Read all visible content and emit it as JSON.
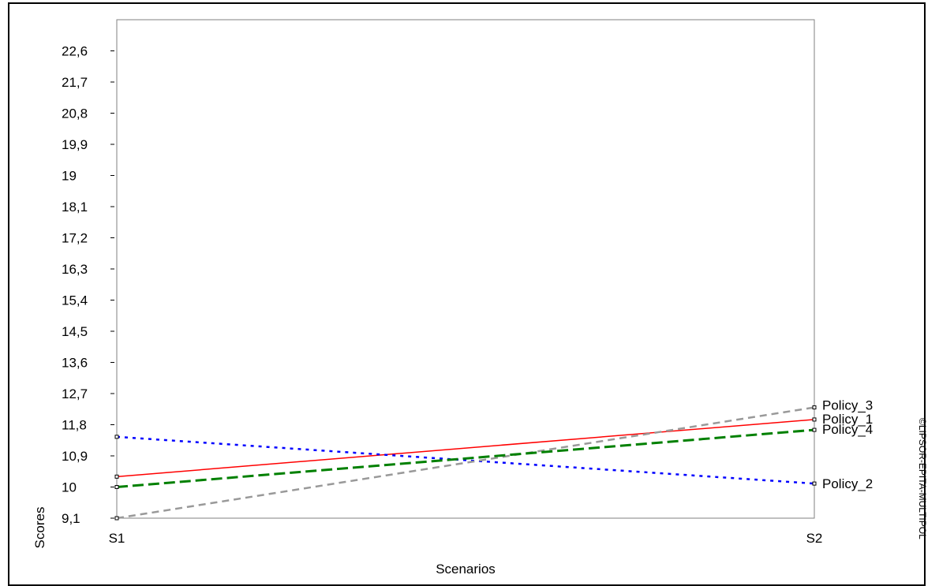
{
  "chart_data": {
    "type": "line",
    "title": "",
    "xlabel": "Scenarios",
    "ylabel": "Scores",
    "categories": [
      "S1",
      "S2"
    ],
    "yticks": [
      "9,1",
      "10",
      "10,9",
      "11,8",
      "12,7",
      "13,6",
      "14,5",
      "15,4",
      "16,3",
      "17,2",
      "18,1",
      "19",
      "19,9",
      "20,8",
      "21,7",
      "22,6"
    ],
    "ytick_values": [
      9.1,
      10.0,
      10.9,
      11.8,
      12.7,
      13.6,
      14.5,
      15.4,
      16.3,
      17.2,
      18.1,
      19.0,
      19.9,
      20.8,
      21.7,
      22.6
    ],
    "ylim": [
      9.1,
      23.5
    ],
    "grid": false,
    "legend": "labels at right end of lines",
    "series": [
      {
        "name": "Policy_1",
        "values": [
          10.3,
          11.95
        ],
        "color": "#ff0000",
        "dash": "solid"
      },
      {
        "name": "Policy_2",
        "values": [
          11.45,
          10.1
        ],
        "color": "#0000ff",
        "dash": "dotted"
      },
      {
        "name": "Policy_3",
        "values": [
          9.1,
          12.3
        ],
        "color": "#999999",
        "dash": "dashed"
      },
      {
        "name": "Policy_4",
        "values": [
          10.0,
          11.65
        ],
        "color": "#008000",
        "dash": "longdash"
      }
    ]
  },
  "watermark": "©LIPSOR-EPITA-MULTIPOL"
}
